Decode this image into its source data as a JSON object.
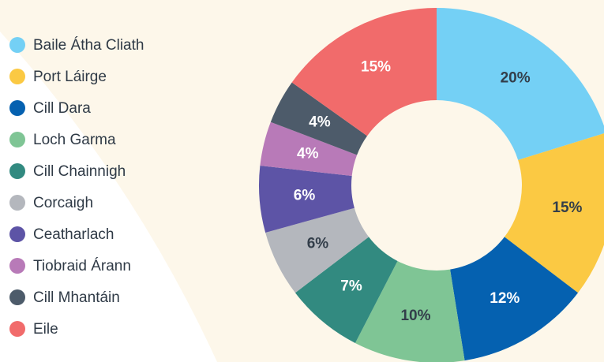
{
  "chart_data": {
    "type": "donut",
    "categories": [
      "Baile Átha Cliath",
      "Port Láirge",
      "Cill Dara",
      "Loch Garma",
      "Cill Chainnigh",
      "Corcaigh",
      "Ceatharlach",
      "Tiobraid Árann",
      "Cill Mhantáin",
      "Eile"
    ],
    "values": [
      20,
      15,
      12,
      10,
      7,
      6,
      6,
      4,
      4,
      15
    ],
    "value_labels": [
      "20%",
      "15%",
      "12%",
      "10%",
      "7%",
      "6%",
      "6%",
      "4%",
      "4%",
      "15%"
    ],
    "colors": [
      "#74d0f5",
      "#fbc943",
      "#0561b0",
      "#7fc595",
      "#328a80",
      "#b4b7bd",
      "#5d54a6",
      "#b87ab8",
      "#4d5b6a",
      "#f16b6b"
    ],
    "legend": "left"
  }
}
